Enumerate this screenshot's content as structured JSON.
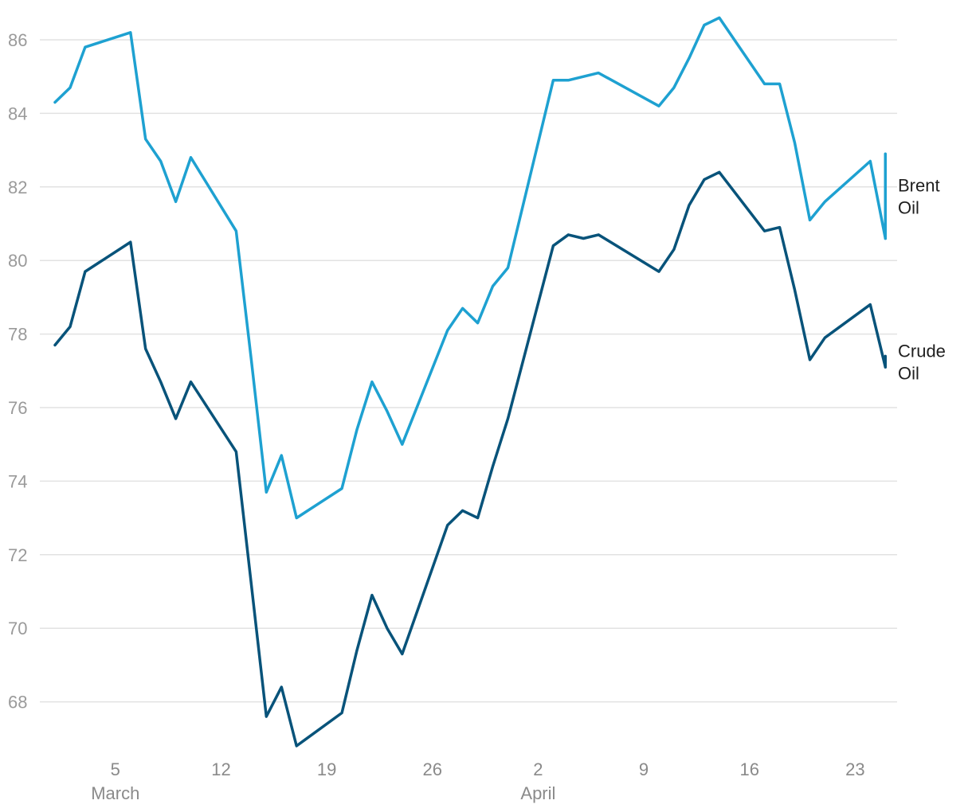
{
  "chart_data": {
    "type": "line",
    "ylim": [
      66.5,
      87
    ],
    "yticks": [
      68,
      70,
      72,
      74,
      76,
      78,
      80,
      82,
      84,
      86
    ],
    "grid": true,
    "legend": "inline-right",
    "x": [
      "2024-03-01",
      "2024-03-02",
      "2024-03-03",
      "2024-03-06",
      "2024-03-07",
      "2024-03-08",
      "2024-03-09",
      "2024-03-10",
      "2024-03-13",
      "2024-03-14",
      "2024-03-15",
      "2024-03-16",
      "2024-03-17",
      "2024-03-20",
      "2024-03-21",
      "2024-03-22",
      "2024-03-23",
      "2024-03-24",
      "2024-03-27",
      "2024-03-28",
      "2024-03-29",
      "2024-03-30",
      "2024-03-31",
      "2024-04-03",
      "2024-04-04",
      "2024-04-05",
      "2024-04-06",
      "2024-04-10",
      "2024-04-11",
      "2024-04-12",
      "2024-04-13",
      "2024-04-14",
      "2024-04-17",
      "2024-04-18",
      "2024-04-19",
      "2024-04-20",
      "2024-04-21",
      "2024-04-24",
      "2024-04-25"
    ],
    "x_ticks": [
      {
        "date": "2024-03-05",
        "label": "5"
      },
      {
        "date": "2024-03-12",
        "label": "12"
      },
      {
        "date": "2024-03-19",
        "label": "19"
      },
      {
        "date": "2024-03-26",
        "label": "26"
      },
      {
        "date": "2024-04-02",
        "label": "2"
      },
      {
        "date": "2024-04-09",
        "label": "9"
      },
      {
        "date": "2024-04-16",
        "label": "16"
      },
      {
        "date": "2024-04-23",
        "label": "23"
      }
    ],
    "month_labels": [
      {
        "date": "2024-03-05",
        "label": "March"
      },
      {
        "date": "2024-04-02",
        "label": "April"
      }
    ],
    "series": [
      {
        "name": "Brent Oil",
        "label_lines": [
          "Brent",
          "Oil"
        ],
        "color": "#1ea1d1",
        "values": [
          84.3,
          84.7,
          85.8,
          86.2,
          83.3,
          82.7,
          81.6,
          82.8,
          80.8,
          77.3,
          73.7,
          74.7,
          73.0,
          73.8,
          75.4,
          76.7,
          75.9,
          75.0,
          78.1,
          78.7,
          78.3,
          79.3,
          79.8,
          84.9,
          84.9,
          85.0,
          85.1,
          84.2,
          84.7,
          85.5,
          86.4,
          86.6,
          84.8,
          84.8,
          83.2,
          81.1,
          81.6,
          82.7,
          80.6
        ],
        "end_range": [
          80.6,
          82.9
        ]
      },
      {
        "name": "Crude Oil",
        "label_lines": [
          "Crude",
          "Oil"
        ],
        "color": "#08537a",
        "values": [
          77.7,
          78.2,
          79.7,
          80.5,
          77.6,
          76.7,
          75.7,
          76.7,
          74.8,
          71.2,
          67.6,
          68.4,
          66.8,
          67.7,
          69.4,
          70.9,
          70.0,
          69.3,
          72.8,
          73.2,
          73.0,
          74.4,
          75.7,
          80.4,
          80.7,
          80.6,
          80.7,
          79.7,
          80.3,
          81.5,
          82.2,
          82.4,
          80.8,
          80.9,
          79.2,
          77.3,
          77.9,
          78.8,
          77.1
        ],
        "end_range": [
          77.1,
          77.4
        ]
      }
    ]
  }
}
